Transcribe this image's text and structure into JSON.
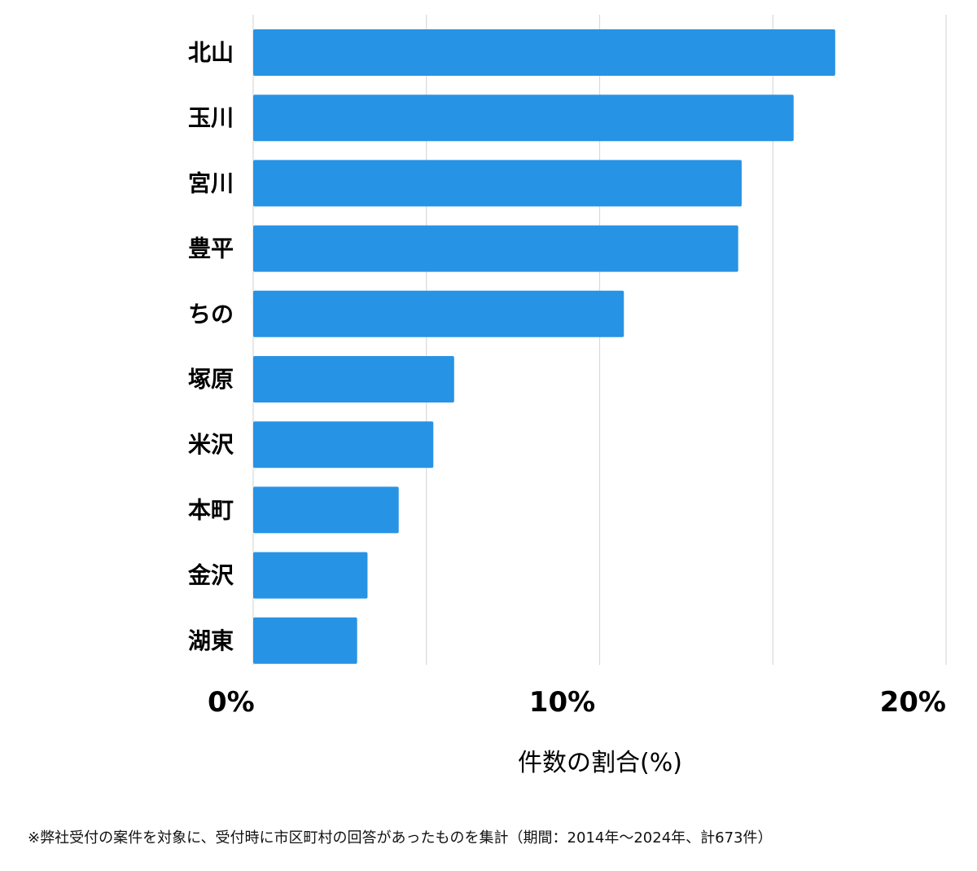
{
  "chart_data": {
    "type": "bar",
    "orientation": "horizontal",
    "categories": [
      "北山",
      "玉川",
      "宮川",
      "豊平",
      "ちの",
      "塚原",
      "米沢",
      "本町",
      "金沢",
      "湖東"
    ],
    "values": [
      16.8,
      15.6,
      14.1,
      14.0,
      10.7,
      5.8,
      5.2,
      4.2,
      3.3,
      3.0
    ],
    "xlabel": "件数の割合(%)",
    "xlim": [
      0,
      20
    ],
    "major_ticks": [
      0,
      10,
      20
    ],
    "tick_labels": [
      "0%",
      "10%",
      "20%"
    ],
    "gridlines": [
      0,
      5,
      10,
      15,
      20
    ],
    "grid": true,
    "bar_color": "#2793e5"
  },
  "footnote": "※弊社受付の案件を対象に、受付時に市区町村の回答があったものを集計（期間：2014年〜2024年、計673件）"
}
